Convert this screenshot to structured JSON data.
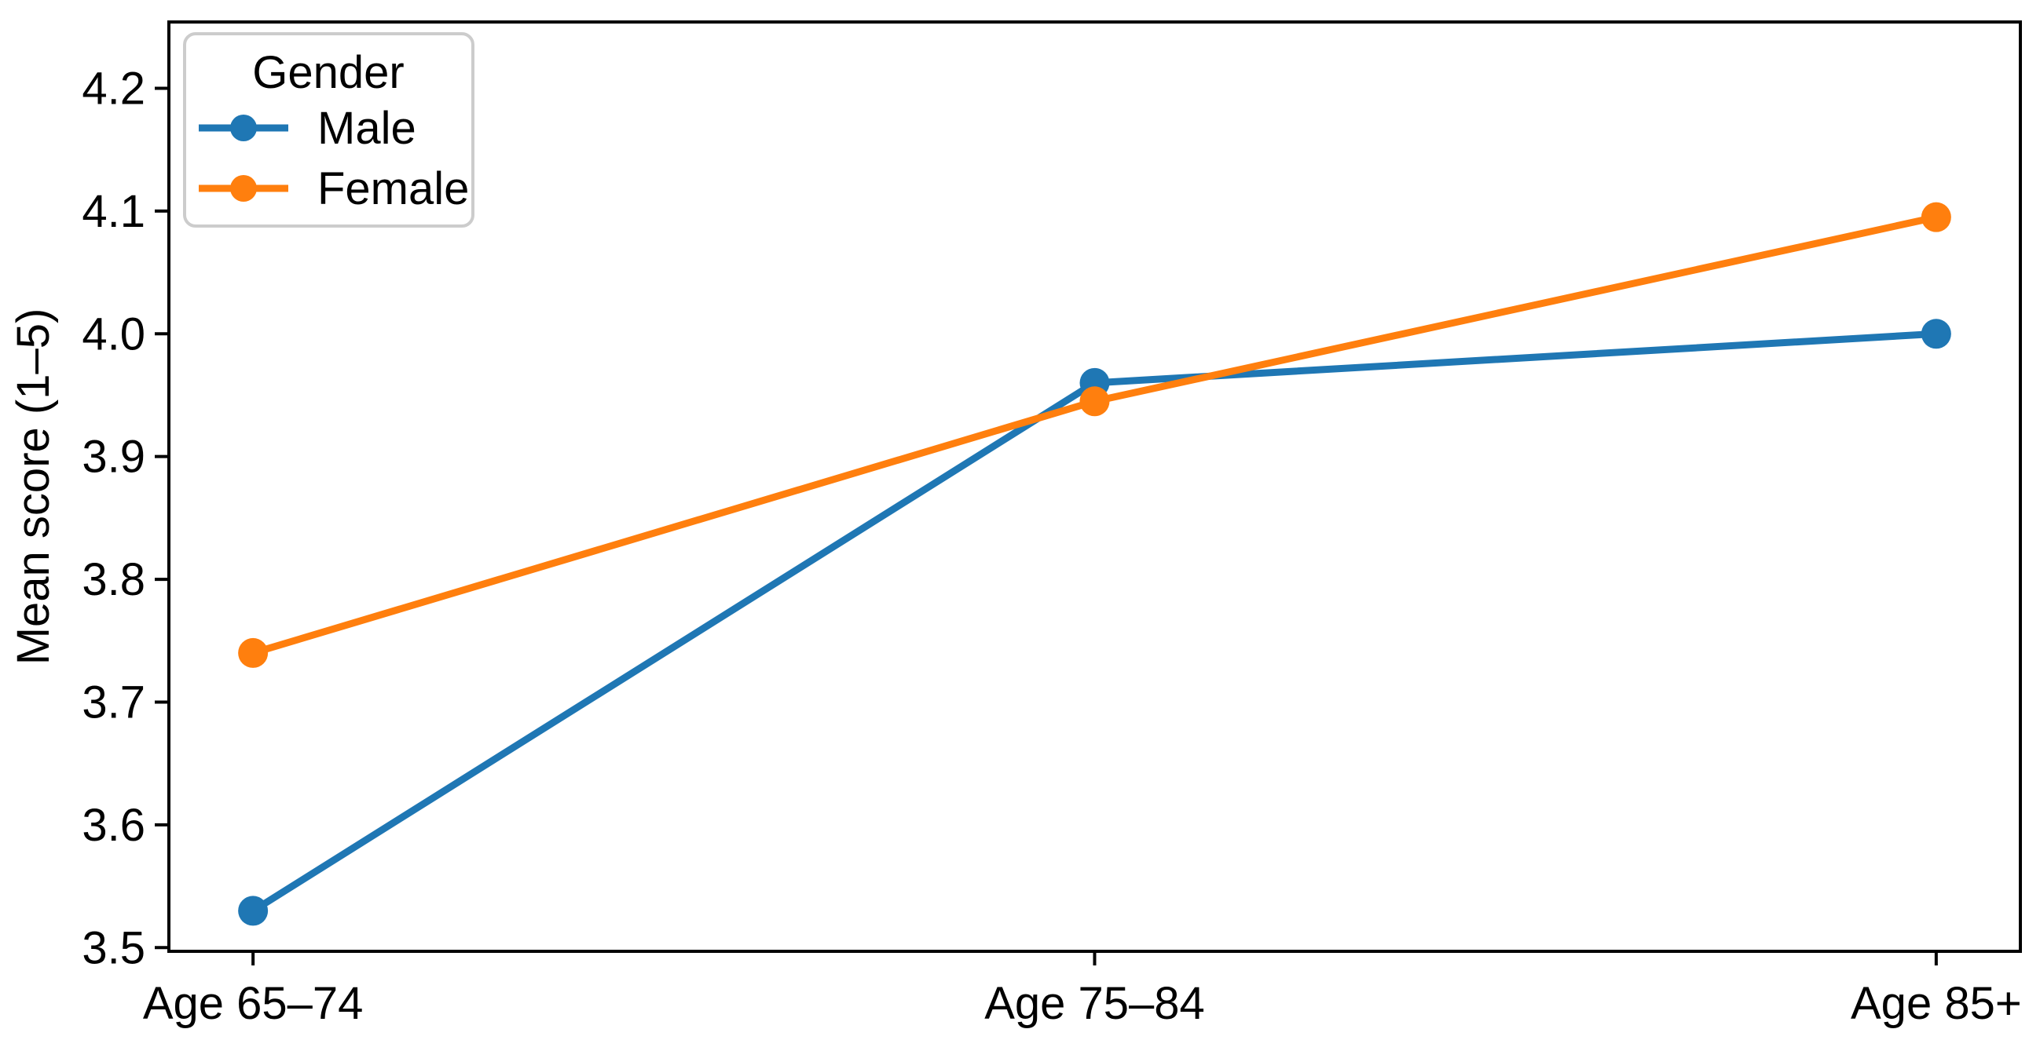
{
  "chart_data": {
    "type": "line",
    "title": "",
    "categories": [
      "Age 65–74",
      "Age 75–84",
      "Age 85+"
    ],
    "series": [
      {
        "name": "Male",
        "color": "#1f77b4",
        "values": [
          3.53,
          3.96,
          4.0
        ]
      },
      {
        "name": "Female",
        "color": "#ff7f0e",
        "values": [
          3.74,
          3.945,
          4.095
        ]
      }
    ],
    "xlabel": "",
    "ylabel": "Mean score (1–5)",
    "yticks": [
      3.5,
      3.6,
      3.7,
      3.8,
      3.9,
      4.0,
      4.1,
      4.2
    ],
    "ytick_labels": [
      "3.5",
      "3.6",
      "3.7",
      "3.8",
      "3.9",
      "4.0",
      "4.1",
      "4.2"
    ],
    "ylim": [
      3.497,
      4.254
    ],
    "xlim": [
      -0.1,
      2.1
    ],
    "grid": false,
    "legend": {
      "title": "Gender",
      "position": "upper-left",
      "entries": [
        "Male",
        "Female"
      ]
    },
    "colors": {
      "axis": "#000000",
      "text": "#000000",
      "legend_border": "#cccccc",
      "background": "#ffffff"
    }
  }
}
